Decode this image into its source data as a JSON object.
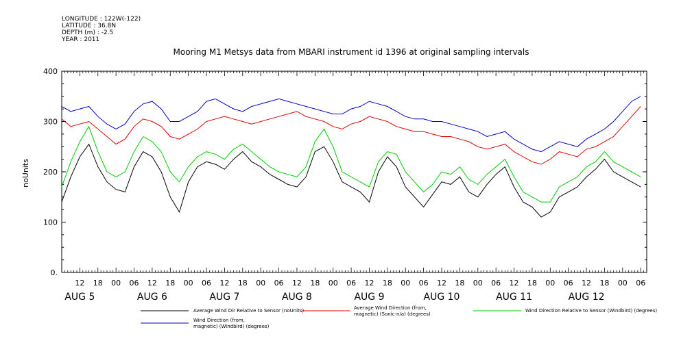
{
  "header": {
    "longitude": "LONGITUDE : 122W(-122)",
    "latitude": "LATITUDE : 36.8N",
    "depth": "DEPTH (m) : -2.5",
    "year": "YEAR : 2011"
  },
  "chart_data": {
    "type": "line",
    "title": "Mooring M1 Metsys data from MBARI instrument id 1396 at original sampling intervals",
    "ylabel": "noUnits",
    "xlabel": "",
    "ylim": [
      0,
      400
    ],
    "yticks": [
      "0.",
      "100",
      "200",
      "300",
      "400"
    ],
    "xlim_hours": [
      6,
      200
    ],
    "hour_ticks": [
      "12",
      "18",
      "00",
      "06",
      "12",
      "18",
      "00",
      "06",
      "12",
      "18",
      "00",
      "06",
      "12",
      "18",
      "00",
      "06",
      "12",
      "18",
      "00",
      "06",
      "12",
      "18",
      "00",
      "06",
      "12",
      "18",
      "00",
      "06",
      "12",
      "18",
      "00",
      "06"
    ],
    "day_labels": [
      "AUG  5",
      "AUG  6",
      "AUG  7",
      "AUG  8",
      "AUG  9",
      "AUG 10",
      "AUG 11",
      "AUG 12"
    ],
    "colors": {
      "black": "#000000",
      "red": "#e00000",
      "green": "#00cc00",
      "blue": "#0000c8"
    },
    "series": [
      {
        "name": "Average Wind Dir Relative to Sensor (noUnits)",
        "color": "#000000",
        "x_hours": [
          6,
          9,
          12,
          15,
          18,
          21,
          24,
          27,
          30,
          33,
          36,
          39,
          42,
          45,
          48,
          51,
          54,
          57,
          60,
          63,
          66,
          69,
          72,
          75,
          78,
          81,
          84,
          87,
          90,
          93,
          96,
          99,
          102,
          105,
          108,
          111,
          114,
          117,
          120,
          123,
          126,
          129,
          132,
          135,
          138,
          141,
          144,
          147,
          150,
          153,
          156,
          159,
          162,
          165,
          168,
          171,
          174,
          177,
          180,
          183,
          186,
          189,
          192,
          195,
          198
        ],
        "values": [
          140,
          190,
          230,
          255,
          210,
          180,
          165,
          160,
          210,
          240,
          230,
          200,
          150,
          120,
          180,
          210,
          220,
          215,
          205,
          225,
          240,
          220,
          210,
          195,
          185,
          175,
          170,
          190,
          240,
          250,
          220,
          180,
          170,
          160,
          140,
          200,
          230,
          210,
          170,
          150,
          130,
          155,
          180,
          175,
          190,
          160,
          150,
          175,
          195,
          210,
          170,
          140,
          130,
          110,
          120,
          150,
          160,
          170,
          190,
          205,
          225,
          200,
          190,
          180,
          170
        ]
      },
      {
        "name": "Average Wind Direction (from, magnetic) (Sonic-n/a) (degrees)",
        "color": "#e00000",
        "x_hours": [
          6,
          9,
          12,
          15,
          18,
          21,
          24,
          27,
          30,
          33,
          36,
          39,
          42,
          45,
          48,
          51,
          54,
          57,
          60,
          63,
          66,
          69,
          72,
          75,
          78,
          81,
          84,
          87,
          90,
          93,
          96,
          99,
          102,
          105,
          108,
          111,
          114,
          117,
          120,
          123,
          126,
          129,
          132,
          135,
          138,
          141,
          144,
          147,
          150,
          153,
          156,
          159,
          162,
          165,
          168,
          171,
          174,
          177,
          180,
          183,
          186,
          189,
          192,
          195,
          198
        ],
        "values": [
          305,
          290,
          295,
          300,
          285,
          270,
          255,
          265,
          290,
          305,
          300,
          290,
          270,
          265,
          275,
          285,
          300,
          305,
          310,
          305,
          300,
          295,
          300,
          305,
          310,
          315,
          320,
          310,
          305,
          300,
          290,
          285,
          295,
          300,
          310,
          305,
          300,
          290,
          285,
          280,
          280,
          275,
          270,
          270,
          265,
          260,
          250,
          245,
          250,
          255,
          240,
          230,
          220,
          215,
          225,
          240,
          235,
          230,
          245,
          250,
          260,
          270,
          290,
          310,
          330
        ]
      },
      {
        "name": "Wind Direction Relative to Sensor (Windbird) (degrees)",
        "color": "#00cc00",
        "x_hours": [
          6,
          9,
          12,
          15,
          18,
          21,
          24,
          27,
          30,
          33,
          36,
          39,
          42,
          45,
          48,
          51,
          54,
          57,
          60,
          63,
          66,
          69,
          72,
          75,
          78,
          81,
          84,
          87,
          90,
          93,
          96,
          99,
          102,
          105,
          108,
          111,
          114,
          117,
          120,
          123,
          126,
          129,
          132,
          135,
          138,
          141,
          144,
          147,
          150,
          153,
          156,
          159,
          162,
          165,
          168,
          171,
          174,
          177,
          180,
          183,
          186,
          189,
          192,
          195,
          198
        ],
        "values": [
          170,
          220,
          260,
          290,
          240,
          200,
          190,
          200,
          240,
          270,
          260,
          240,
          200,
          180,
          210,
          230,
          240,
          235,
          225,
          245,
          255,
          240,
          225,
          210,
          200,
          195,
          190,
          210,
          260,
          285,
          250,
          200,
          190,
          180,
          170,
          220,
          240,
          235,
          200,
          180,
          160,
          175,
          200,
          195,
          210,
          185,
          175,
          195,
          210,
          225,
          190,
          160,
          150,
          140,
          140,
          170,
          180,
          190,
          210,
          220,
          240,
          220,
          210,
          200,
          190
        ]
      },
      {
        "name": "Wind Direction (from, magnetic) (Windbird) (degrees)",
        "color": "#0000c8",
        "x_hours": [
          6,
          9,
          12,
          15,
          18,
          21,
          24,
          27,
          30,
          33,
          36,
          39,
          42,
          45,
          48,
          51,
          54,
          57,
          60,
          63,
          66,
          69,
          72,
          75,
          78,
          81,
          84,
          87,
          90,
          93,
          96,
          99,
          102,
          105,
          108,
          111,
          114,
          117,
          120,
          123,
          126,
          129,
          132,
          135,
          138,
          141,
          144,
          147,
          150,
          153,
          156,
          159,
          162,
          165,
          168,
          171,
          174,
          177,
          180,
          183,
          186,
          189,
          192,
          195,
          198
        ],
        "values": [
          330,
          320,
          325,
          330,
          310,
          295,
          285,
          295,
          320,
          335,
          340,
          325,
          300,
          300,
          310,
          320,
          340,
          345,
          335,
          325,
          320,
          330,
          335,
          340,
          345,
          340,
          335,
          330,
          325,
          320,
          315,
          315,
          325,
          330,
          340,
          335,
          330,
          320,
          310,
          305,
          305,
          300,
          300,
          295,
          290,
          285,
          280,
          270,
          275,
          280,
          265,
          255,
          245,
          240,
          250,
          260,
          255,
          250,
          265,
          275,
          285,
          300,
          320,
          340,
          350
        ]
      }
    ],
    "legend": [
      {
        "label_lines": [
          "Average Wind Dir Relative to Sensor (noUnits)"
        ],
        "color": "#000000"
      },
      {
        "label_lines": [
          "Average Wind Direction (from,",
          "magnetic) (Sonic-n/a) (degrees)"
        ],
        "color": "#e00000"
      },
      {
        "label_lines": [
          "Wind Direction Relative to Sensor (Windbird) (degrees)"
        ],
        "color": "#00cc00"
      },
      {
        "label_lines": [
          "Wind Direction (from,",
          "magnetic) (Windbird) (degrees)"
        ],
        "color": "#0000c8"
      }
    ]
  }
}
